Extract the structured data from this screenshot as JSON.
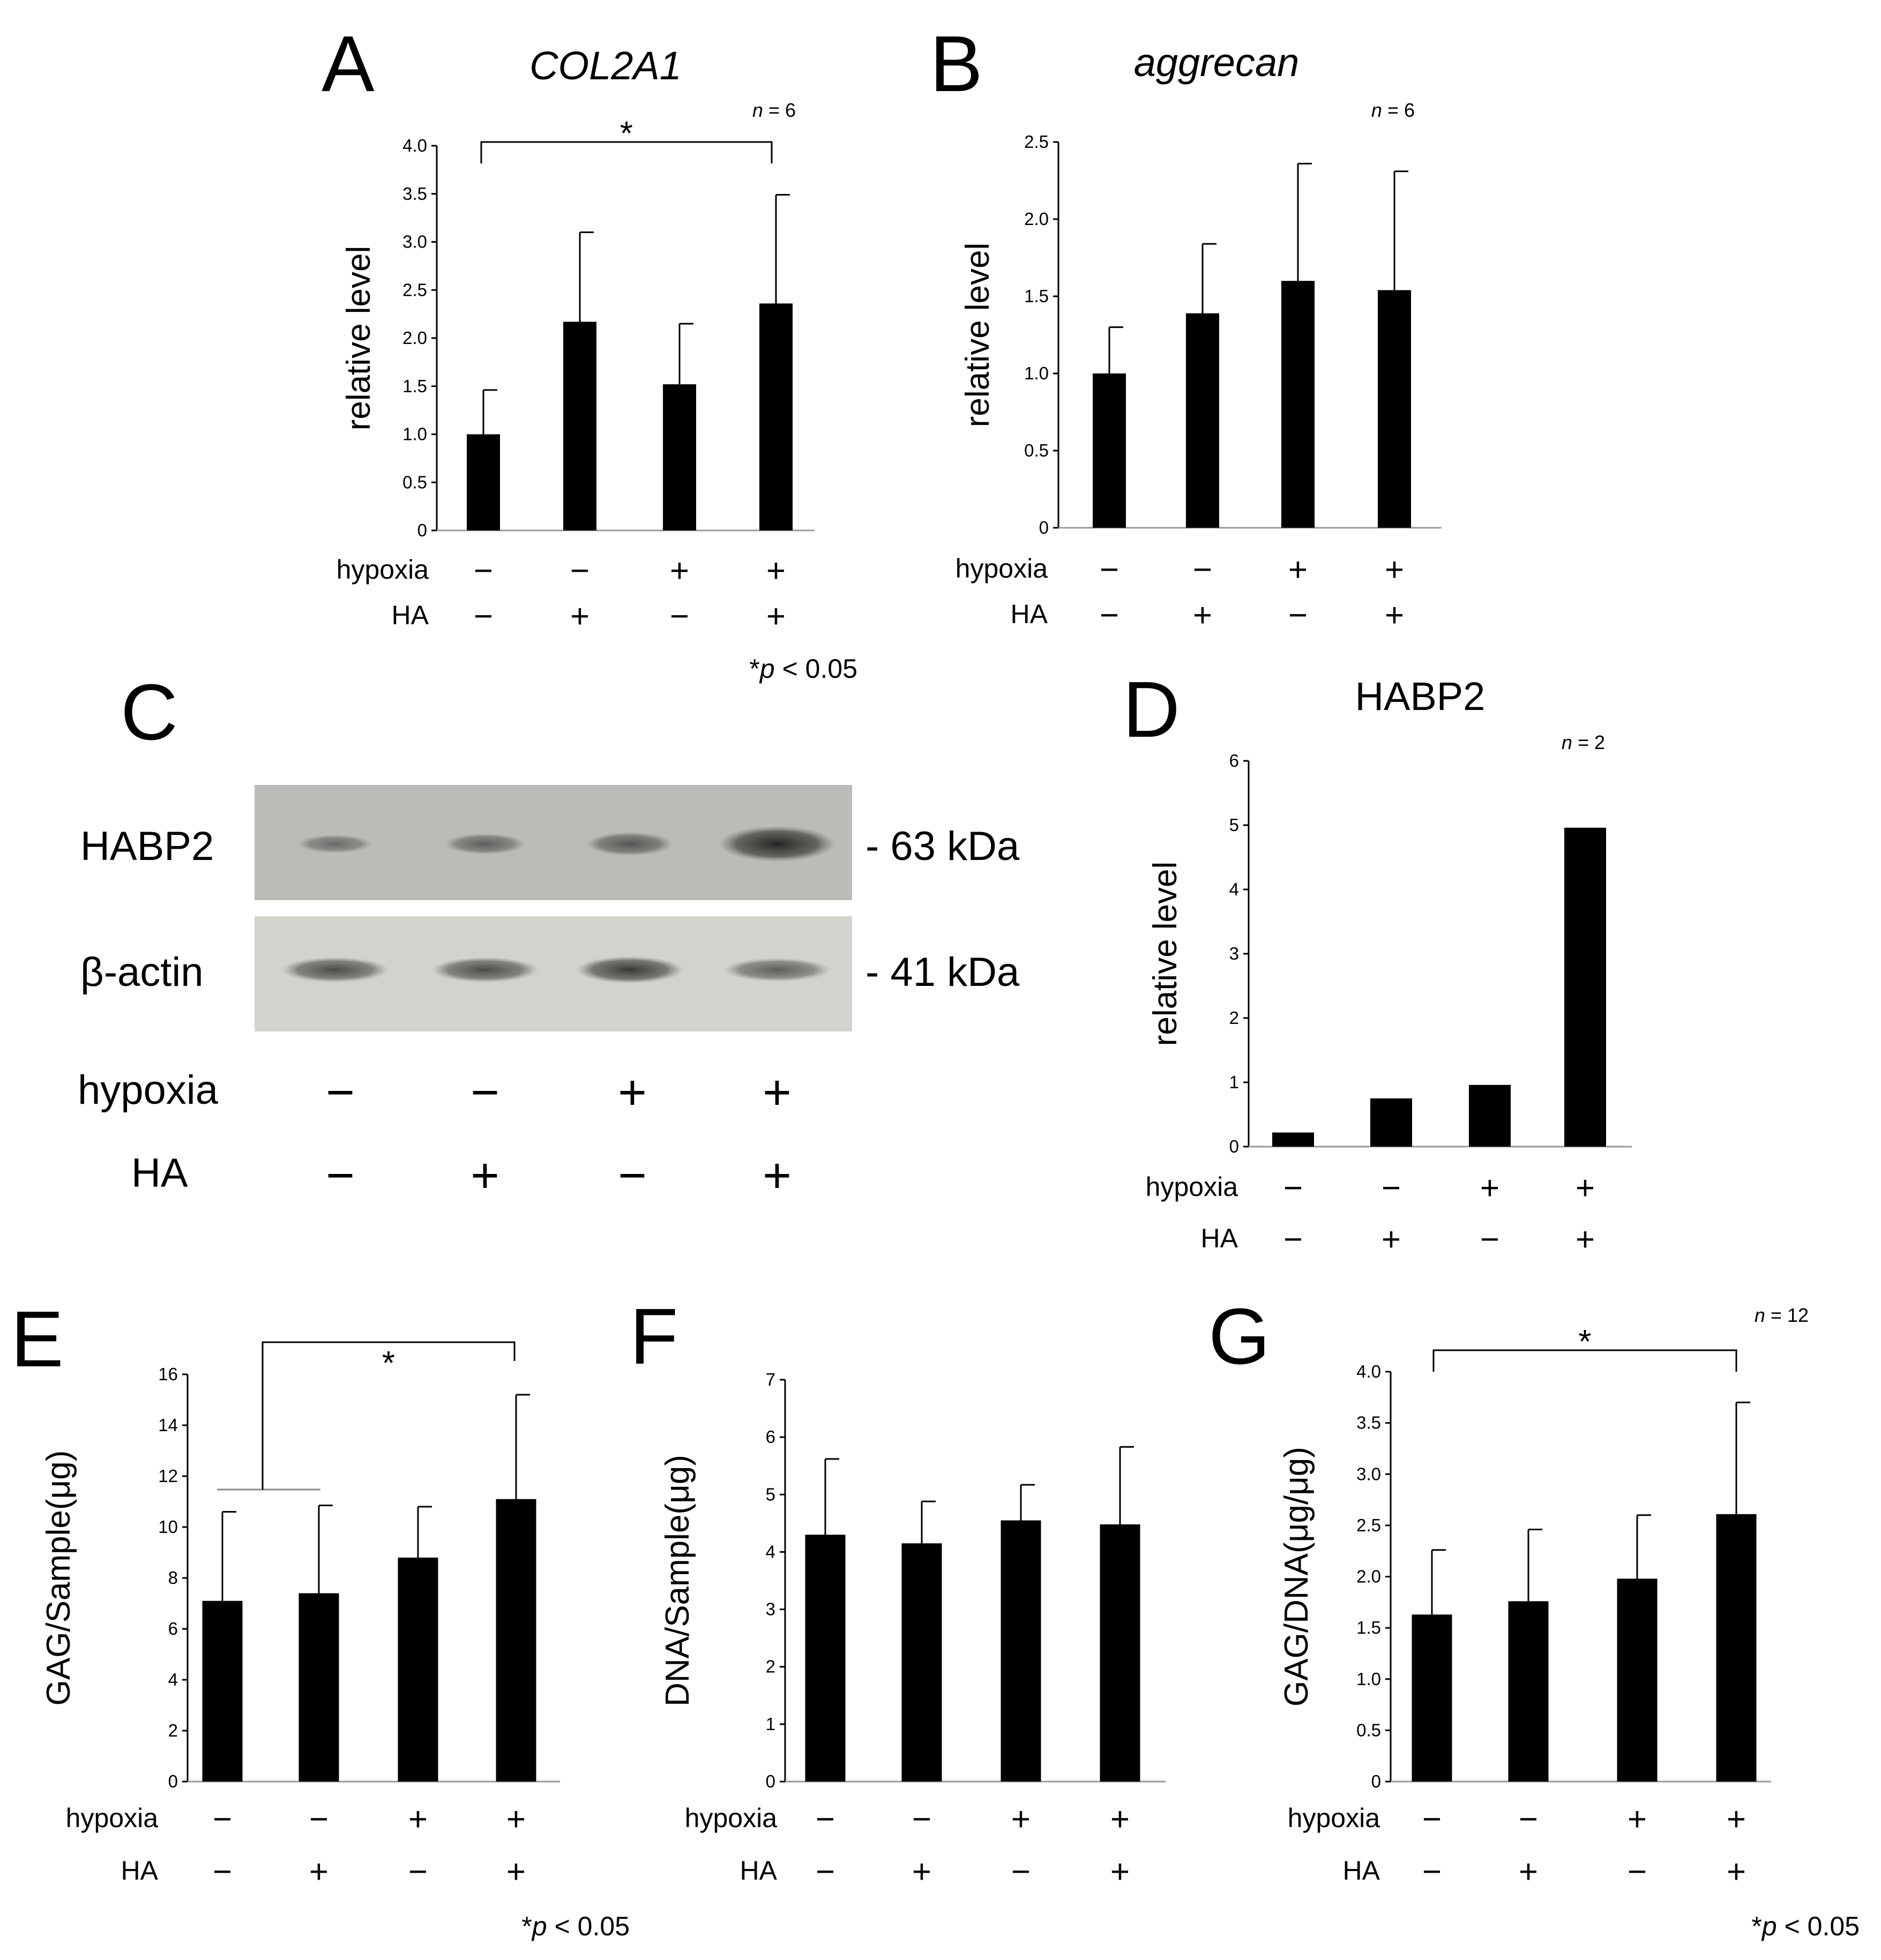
{
  "chart_data": [
    {
      "panel": "A",
      "type": "bar",
      "title": "COL2A1",
      "n_label": "n = 6",
      "ylabel": "relative level",
      "ylim": [
        0,
        4.0
      ],
      "yticks": [
        "0",
        "0.5",
        "1.0",
        "1.5",
        "2.0",
        "2.5",
        "3.0",
        "3.5",
        "4.0"
      ],
      "values": [
        1.0,
        2.17,
        1.52,
        2.36
      ],
      "errors": [
        0.46,
        0.93,
        0.63,
        1.13
      ],
      "conditions": {
        "hypoxia": [
          "−",
          "−",
          "+",
          "+"
        ],
        "HA": [
          "−",
          "+",
          "−",
          "+"
        ]
      },
      "row_labels": [
        "hypoxia",
        "HA"
      ],
      "significance": {
        "marker": "*",
        "between": [
          0,
          3
        ]
      },
      "footnote": "*p < 0.05"
    },
    {
      "panel": "B",
      "type": "bar",
      "title": "aggrecan",
      "n_label": "n = 6",
      "ylabel": "relative level",
      "ylim": [
        0,
        2.5
      ],
      "yticks": [
        "0",
        "0.5",
        "1.0",
        "1.5",
        "2.0",
        "2.5"
      ],
      "values": [
        1.0,
        1.39,
        1.6,
        1.54
      ],
      "errors": [
        0.3,
        0.45,
        0.76,
        0.77
      ],
      "conditions": {
        "hypoxia": [
          "−",
          "−",
          "+",
          "+"
        ],
        "HA": [
          "−",
          "+",
          "−",
          "+"
        ]
      },
      "row_labels": [
        "hypoxia",
        "HA"
      ]
    },
    {
      "panel": "D",
      "type": "bar",
      "title": "HABP2",
      "n_label": "n = 2",
      "ylabel": "relative level",
      "ylim": [
        0,
        6
      ],
      "yticks": [
        "0",
        "1",
        "2",
        "3",
        "4",
        "5",
        "6"
      ],
      "values": [
        0.22,
        0.75,
        0.96,
        4.96
      ],
      "conditions": {
        "hypoxia": [
          "−",
          "−",
          "+",
          "+"
        ],
        "HA": [
          "−",
          "+",
          "−",
          "+"
        ]
      },
      "row_labels": [
        "hypoxia",
        "HA"
      ]
    },
    {
      "panel": "E",
      "type": "bar",
      "ylabel": "GAG/Sample(μg)",
      "ylim": [
        0,
        16
      ],
      "yticks": [
        "0",
        "2",
        "4",
        "6",
        "8",
        "10",
        "12",
        "14",
        "16"
      ],
      "values": [
        7.1,
        7.4,
        8.8,
        11.1
      ],
      "errors": [
        3.5,
        3.45,
        2.0,
        4.1
      ],
      "conditions": {
        "hypoxia": [
          "−",
          "−",
          "+",
          "+"
        ],
        "HA": [
          "−",
          "+",
          "−",
          "+"
        ]
      },
      "row_labels": [
        "hypoxia",
        "HA"
      ],
      "significance": {
        "marker": "*",
        "between": [
          [
            0,
            1
          ],
          3
        ]
      },
      "footnote": "*p < 0.05"
    },
    {
      "panel": "F",
      "type": "bar",
      "ylabel": "DNA/Sample(μg)",
      "ylim": [
        0,
        7
      ],
      "yticks": [
        "0",
        "1",
        "2",
        "3",
        "4",
        "5",
        "6",
        "7"
      ],
      "values": [
        4.3,
        4.15,
        4.55,
        4.48
      ],
      "errors": [
        1.32,
        0.73,
        0.62,
        1.35
      ],
      "conditions": {
        "hypoxia": [
          "−",
          "−",
          "+",
          "+"
        ],
        "HA": [
          "−",
          "+",
          "−",
          "+"
        ]
      },
      "row_labels": [
        "hypoxia",
        "HA"
      ]
    },
    {
      "panel": "G",
      "type": "bar",
      "ylabel": "GAG/DNA(μg/μg)",
      "ylim": [
        0,
        4.0
      ],
      "n_label": "n = 12",
      "yticks": [
        "0",
        "0.5",
        "1.0",
        "1.5",
        "2.0",
        "2.5",
        "3.0",
        "3.5",
        "4.0"
      ],
      "values": [
        1.63,
        1.76,
        1.98,
        2.61
      ],
      "errors": [
        0.63,
        0.7,
        0.62,
        1.09
      ],
      "conditions": {
        "hypoxia": [
          "−",
          "−",
          "+",
          "+"
        ],
        "HA": [
          "−",
          "+",
          "−",
          "+"
        ]
      },
      "row_labels": [
        "hypoxia",
        "HA"
      ],
      "significance": {
        "marker": "*",
        "between": [
          0,
          3
        ]
      },
      "footnote": "*p < 0.05"
    }
  ],
  "western_blot": {
    "panel": "C",
    "bands": [
      {
        "label": "HABP2",
        "size": "- 63 kDa",
        "intensity": [
          0.25,
          0.35,
          0.45,
          0.9
        ]
      },
      {
        "label": "β-actin",
        "size": "- 41 kDa",
        "intensity": [
          0.6,
          0.6,
          0.75,
          0.45
        ]
      }
    ],
    "conditions": {
      "hypoxia": [
        "−",
        "−",
        "+",
        "+"
      ],
      "HA": [
        "−",
        "+",
        "−",
        "+"
      ]
    },
    "row_labels": [
      "hypoxia",
      "HA"
    ]
  },
  "colors": {
    "bar": "#000000",
    "background": "#ffffff",
    "blot": "#c8c6c2"
  }
}
